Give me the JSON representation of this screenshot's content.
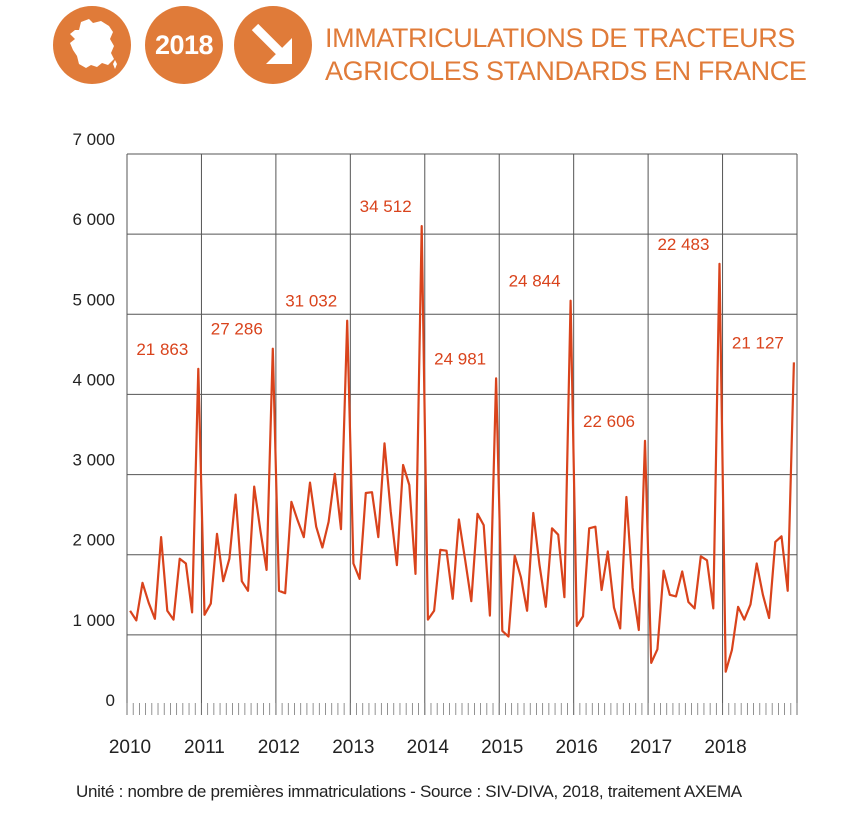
{
  "colors": {
    "accent": "#e07b39",
    "line": "#d9431c",
    "grid": "#555555",
    "text": "#222222"
  },
  "header": {
    "icons": [
      "france-map-icon",
      "year-badge",
      "arrow-down-right-icon"
    ],
    "year_badge": "2018",
    "title_line1": "IMMATRICULATIONS DE TRACTEURS",
    "title_line2": "AGRICOLES STANDARDS EN FRANCE"
  },
  "chart_data": {
    "type": "line",
    "x_tick_labels": [
      "2010",
      "2011",
      "2012",
      "2013",
      "2014",
      "2015",
      "2016",
      "2017",
      "2018"
    ],
    "y_tick_labels": [
      "0",
      "1 000",
      "2 000",
      "3 000",
      "4 000",
      "5 000",
      "6 000",
      "7 000"
    ],
    "ylim": [
      0,
      7000
    ],
    "grid": true,
    "annual_totals": [
      "21 863",
      "27 286",
      "31 032",
      "34 512",
      "24 981",
      "24 844",
      "22 606",
      "22 483",
      "21 127"
    ],
    "series": [
      {
        "values": [
          1300,
          1180,
          1650,
          1400,
          1200,
          2220,
          1300,
          1190,
          1950,
          1890,
          1280,
          4320,
          1250,
          1390,
          2260,
          1670,
          1950,
          2750,
          1670,
          1550,
          2850,
          2300,
          1810,
          4570,
          1550,
          1520,
          2660,
          2430,
          2220,
          2900,
          2350,
          2090,
          2410,
          3010,
          2320,
          4920,
          1890,
          1700,
          2770,
          2780,
          2220,
          3390,
          2540,
          1870,
          3120,
          2870,
          1760,
          6100,
          1190,
          1300,
          2060,
          2050,
          1450,
          2440,
          1940,
          1420,
          2510,
          2370,
          1240,
          4200,
          1050,
          980,
          1990,
          1720,
          1300,
          2520,
          1870,
          1350,
          2330,
          2250,
          1470,
          5170,
          1110,
          1230,
          2330,
          2350,
          1560,
          2040,
          1340,
          1080,
          2720,
          1590,
          1060,
          3420,
          650,
          820,
          1800,
          1500,
          1480,
          1790,
          1410,
          1330,
          1980,
          1930,
          1330,
          5630,
          540,
          810,
          1350,
          1190,
          1380,
          1890,
          1500,
          1210,
          2160,
          2230,
          1550,
          4400
        ]
      }
    ]
  },
  "footer": {
    "source": "Unité : nombre de premières immatriculations - Source : SIV-DIVA, 2018, traitement AXEMA"
  }
}
